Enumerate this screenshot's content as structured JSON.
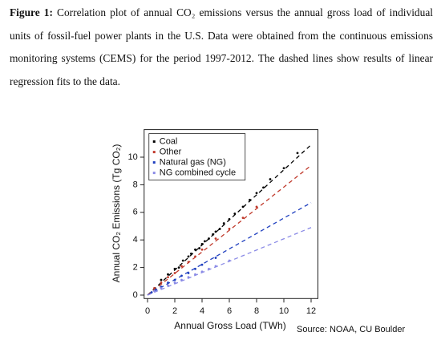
{
  "caption": {
    "label": "Figure 1:",
    "text": "Correlation plot of annual CO₂ emissions versus the annual gross load of individual units of fossil-fuel power plants in the U.S. Data were obtained from the continuous emissions monitoring systems (CEMS) for the period 1997-2012. The dashed lines show results of linear regression fits to the data."
  },
  "source": "Source: NOAA, CU Boulder",
  "chart_data": {
    "type": "scatter",
    "x_label": "Annual Gross Load (TWh)",
    "y_label": "Annual CO₂ Emissions (Tg CO₂)",
    "xlim": [
      -0.25,
      12.5
    ],
    "ylim": [
      -0.25,
      12
    ],
    "xticks": [
      0,
      2,
      4,
      6,
      8,
      10,
      12
    ],
    "yticks": [
      0,
      2,
      4,
      6,
      8,
      10
    ],
    "legend": "top-left",
    "series": [
      {
        "name": "Coal",
        "color": "#000000",
        "x": [
          1,
          1.5,
          2,
          2.3,
          2.6,
          3,
          3.2,
          3.5,
          3.8,
          4,
          4.2,
          4.5,
          4.8,
          5,
          5.3,
          5.6,
          6,
          6.4,
          7,
          7.5,
          8,
          8.5,
          9,
          10,
          11
        ],
        "values": [
          1.1,
          1.5,
          1.9,
          2.0,
          2.5,
          2.8,
          3.0,
          3.3,
          3.4,
          3.7,
          3.9,
          4.1,
          4.4,
          4.6,
          4.8,
          5.2,
          5.5,
          5.9,
          6.4,
          6.9,
          7.4,
          7.8,
          8.4,
          9.2,
          10.3
        ],
        "fit_x": [
          0,
          12
        ],
        "fit_values": [
          0,
          10.9
        ]
      },
      {
        "name": "Other",
        "color": "#c0392b",
        "x": [
          0.5,
          1,
          1.5,
          2,
          2.5,
          3,
          3.5,
          4,
          5,
          6,
          7,
          8
        ],
        "values": [
          0.5,
          0.9,
          1.3,
          1.6,
          2.1,
          2.4,
          2.8,
          3.3,
          4.1,
          4.8,
          5.6,
          6.4
        ],
        "fit_x": [
          0,
          12
        ],
        "fit_values": [
          0,
          9.4
        ]
      },
      {
        "name": "Natural gas (NG)",
        "color": "#1f3fbf",
        "x": [
          0.3,
          0.6,
          1,
          1.5,
          2,
          2.5,
          3,
          3.5,
          4,
          5
        ],
        "values": [
          0.2,
          0.4,
          0.6,
          0.9,
          1.1,
          1.4,
          1.6,
          1.9,
          2.2,
          2.7
        ],
        "fit_x": [
          0,
          12
        ],
        "fit_values": [
          0,
          6.7
        ]
      },
      {
        "name": "NG combined cycle",
        "color": "#8a8ae6",
        "x": [
          0.5,
          1,
          1.5,
          2,
          2.5,
          3,
          3.5,
          4,
          4.5,
          5,
          6
        ],
        "values": [
          0.3,
          0.5,
          0.7,
          0.9,
          1.1,
          1.3,
          1.5,
          1.7,
          1.9,
          2.1,
          2.5
        ],
        "fit_x": [
          0,
          12
        ],
        "fit_values": [
          0,
          4.9
        ]
      }
    ]
  }
}
